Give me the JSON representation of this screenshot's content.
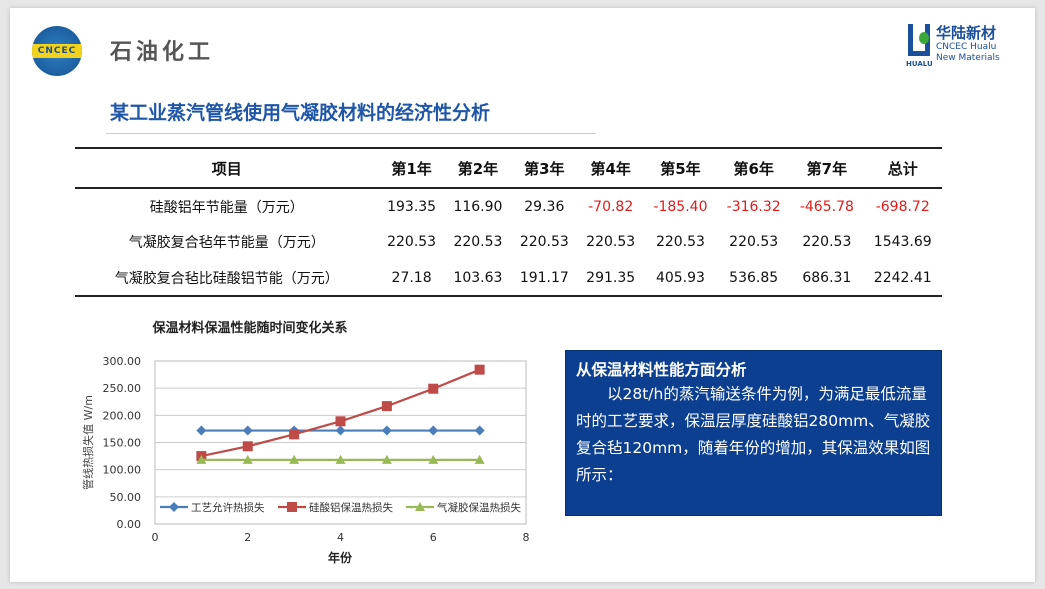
{
  "header": {
    "left_logo_band": "CNCEC",
    "left_logo_text": "石油化工",
    "right_logo_cn": "华陆新材",
    "right_logo_en1": "CNCEC Hualu",
    "right_logo_en2": "New Materials",
    "right_logo_mark": "HUALU"
  },
  "title": "某工业蒸汽管线使用气凝胶材料的经济性分析",
  "table": {
    "headers": [
      "项目",
      "第1年",
      "第2年",
      "第3年",
      "第4年",
      "第5年",
      "第6年",
      "第7年",
      "总计"
    ],
    "rows": [
      [
        "硅酸铝年节能量（万元）",
        "193.35",
        "116.90",
        "29.36",
        "-70.82",
        "-185.40",
        "-316.32",
        "-465.78",
        "-698.72"
      ],
      [
        "气凝胶复合毡年节能量（万元）",
        "220.53",
        "220.53",
        "220.53",
        "220.53",
        "220.53",
        "220.53",
        "220.53",
        "1543.69"
      ],
      [
        "气凝胶复合毡比硅酸铝节能（万元）",
        "27.18",
        "103.63",
        "191.17",
        "291.35",
        "405.93",
        "536.85",
        "686.31",
        "2242.41"
      ]
    ],
    "negative_color": "#e01b1b"
  },
  "chart_data": {
    "type": "line",
    "title": "保温材料保温性能随时间变化关系",
    "xlabel": "年份",
    "ylabel": "管线热损失值 W/m",
    "xlim": [
      0,
      8
    ],
    "ylim": [
      0,
      300
    ],
    "xticks": [
      "0",
      "2",
      "4",
      "6",
      "8"
    ],
    "yticks": [
      "0.00",
      "50.00",
      "100.00",
      "150.00",
      "200.00",
      "250.00",
      "300.00"
    ],
    "grid": true,
    "legend": "bottom-inside",
    "x": [
      1,
      2,
      3,
      4,
      5,
      6,
      7
    ],
    "series": [
      {
        "name": "工艺允许热损失",
        "values": [
          172,
          172,
          172,
          172,
          172,
          172,
          172
        ],
        "color": "#4a7ebb",
        "marker": "diamond"
      },
      {
        "name": "硅酸铝保温热损失",
        "values": [
          125,
          143,
          165,
          189,
          217,
          249,
          284
        ],
        "color": "#be4b48",
        "marker": "square"
      },
      {
        "name": "气凝胶保温热损失",
        "values": [
          118,
          118,
          118,
          118,
          118,
          118,
          118
        ],
        "color": "#98b954",
        "marker": "triangle"
      }
    ]
  },
  "analysis": {
    "heading": "从保温材料性能方面分析",
    "body": "以28t/h的蒸汽输送条件为例，为满足最低流量时的工艺要求，保温层厚度硅酸铝280mm、气凝胶复合毡120mm，随着年份的增加，其保温效果如图所示："
  }
}
